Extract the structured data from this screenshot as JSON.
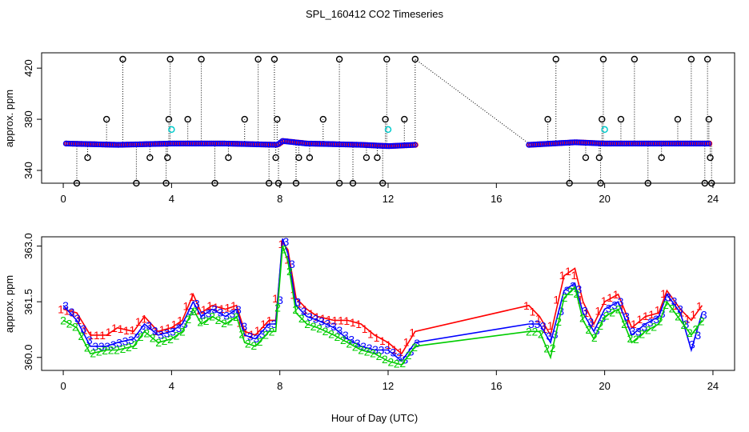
{
  "colors": {
    "red": "#ff0000",
    "blue": "#0000ff",
    "green": "#00cc00",
    "cyan": "#00cccc",
    "black": "#000000"
  },
  "chart_data": [
    {
      "type": "scatter",
      "title": "SPL_160412  CO2 Timeseries",
      "xlabel": "",
      "ylabel": "approx. ppm",
      "xlim": [
        -0.8,
        24.8
      ],
      "ylim": [
        330,
        432
      ],
      "xticks": [
        0,
        4,
        8,
        12,
        16,
        20,
        24
      ],
      "yticks": [
        340,
        380,
        420
      ],
      "segments": [
        [
          0.1,
          13.0
        ],
        [
          17.2,
          23.9
        ]
      ],
      "baseline": [
        {
          "x": 0.1,
          "y": 361
        },
        {
          "x": 2.0,
          "y": 360
        },
        {
          "x": 4.0,
          "y": 361
        },
        {
          "x": 6.0,
          "y": 361
        },
        {
          "x": 7.9,
          "y": 360
        },
        {
          "x": 8.1,
          "y": 363
        },
        {
          "x": 9.0,
          "y": 361
        },
        {
          "x": 11.0,
          "y": 360
        },
        {
          "x": 12.0,
          "y": 359
        },
        {
          "x": 13.0,
          "y": 360
        },
        {
          "x": 17.2,
          "y": 360
        },
        {
          "x": 18.9,
          "y": 362
        },
        {
          "x": 20.0,
          "y": 361
        },
        {
          "x": 22.0,
          "y": 361
        },
        {
          "x": 23.9,
          "y": 361
        }
      ],
      "gap_line": {
        "x": [
          13.0,
          17.2
        ],
        "y": [
          427,
          361
        ]
      },
      "cyan_points": [
        {
          "x": 4.0,
          "y": 372
        },
        {
          "x": 12.0,
          "y": 372
        },
        {
          "x": 20.0,
          "y": 372
        }
      ],
      "outliers": [
        {
          "x": 0.5,
          "y": 330
        },
        {
          "x": 0.9,
          "y": 350
        },
        {
          "x": 1.6,
          "y": 380
        },
        {
          "x": 2.2,
          "y": 427
        },
        {
          "x": 2.7,
          "y": 330
        },
        {
          "x": 3.2,
          "y": 350
        },
        {
          "x": 3.8,
          "y": 330
        },
        {
          "x": 3.85,
          "y": 350
        },
        {
          "x": 3.9,
          "y": 380
        },
        {
          "x": 3.95,
          "y": 427
        },
        {
          "x": 4.6,
          "y": 380
        },
        {
          "x": 5.1,
          "y": 427
        },
        {
          "x": 5.6,
          "y": 330
        },
        {
          "x": 6.1,
          "y": 350
        },
        {
          "x": 6.7,
          "y": 380
        },
        {
          "x": 7.2,
          "y": 427
        },
        {
          "x": 7.6,
          "y": 330
        },
        {
          "x": 7.8,
          "y": 427
        },
        {
          "x": 7.85,
          "y": 350
        },
        {
          "x": 7.9,
          "y": 380
        },
        {
          "x": 7.95,
          "y": 330
        },
        {
          "x": 8.6,
          "y": 330
        },
        {
          "x": 8.7,
          "y": 350
        },
        {
          "x": 9.1,
          "y": 350
        },
        {
          "x": 9.6,
          "y": 380
        },
        {
          "x": 10.2,
          "y": 427
        },
        {
          "x": 10.2,
          "y": 330
        },
        {
          "x": 10.7,
          "y": 330
        },
        {
          "x": 11.2,
          "y": 350
        },
        {
          "x": 11.6,
          "y": 350
        },
        {
          "x": 11.8,
          "y": 330
        },
        {
          "x": 11.9,
          "y": 380
        },
        {
          "x": 11.95,
          "y": 427
        },
        {
          "x": 12.6,
          "y": 380
        },
        {
          "x": 13.0,
          "y": 427
        },
        {
          "x": 17.9,
          "y": 380
        },
        {
          "x": 18.2,
          "y": 427
        },
        {
          "x": 18.7,
          "y": 330
        },
        {
          "x": 19.3,
          "y": 350
        },
        {
          "x": 19.8,
          "y": 350
        },
        {
          "x": 19.85,
          "y": 330
        },
        {
          "x": 19.9,
          "y": 380
        },
        {
          "x": 19.95,
          "y": 427
        },
        {
          "x": 20.6,
          "y": 380
        },
        {
          "x": 21.1,
          "y": 427
        },
        {
          "x": 21.6,
          "y": 330
        },
        {
          "x": 22.1,
          "y": 350
        },
        {
          "x": 22.7,
          "y": 380
        },
        {
          "x": 23.2,
          "y": 427
        },
        {
          "x": 23.7,
          "y": 330
        },
        {
          "x": 23.8,
          "y": 427
        },
        {
          "x": 23.85,
          "y": 380
        },
        {
          "x": 23.9,
          "y": 350
        },
        {
          "x": 23.95,
          "y": 330
        }
      ]
    },
    {
      "type": "line",
      "title": "",
      "xlabel": "Hour of Day (UTC)",
      "ylabel": "approx. ppm",
      "xlim": [
        -0.8,
        24.8
      ],
      "ylim": [
        359.65,
        363.25
      ],
      "xticks": [
        0,
        4,
        8,
        12,
        16,
        20,
        24
      ],
      "yticks": [
        360.0,
        361.5,
        363.0
      ],
      "ytick_labels": [
        "360.0",
        "361.5",
        "363.0"
      ],
      "series": [
        {
          "name": "1",
          "color": "#ff0000",
          "points": [
            {
              "x": 0.0,
              "y": 361.3
            },
            {
              "x": 0.5,
              "y": 361.2
            },
            {
              "x": 1.0,
              "y": 360.6
            },
            {
              "x": 1.6,
              "y": 360.6
            },
            {
              "x": 2.0,
              "y": 360.8
            },
            {
              "x": 2.6,
              "y": 360.7
            },
            {
              "x": 3.0,
              "y": 361.1
            },
            {
              "x": 3.5,
              "y": 360.7
            },
            {
              "x": 4.0,
              "y": 360.8
            },
            {
              "x": 4.4,
              "y": 361.0
            },
            {
              "x": 4.8,
              "y": 361.7
            },
            {
              "x": 5.1,
              "y": 361.2
            },
            {
              "x": 5.5,
              "y": 361.4
            },
            {
              "x": 6.0,
              "y": 361.3
            },
            {
              "x": 6.4,
              "y": 361.4
            },
            {
              "x": 6.7,
              "y": 360.7
            },
            {
              "x": 7.1,
              "y": 360.6
            },
            {
              "x": 7.6,
              "y": 361.0
            },
            {
              "x": 7.85,
              "y": 361.0
            },
            {
              "x": 8.1,
              "y": 363.1
            },
            {
              "x": 8.3,
              "y": 362.9
            },
            {
              "x": 8.6,
              "y": 361.6
            },
            {
              "x": 9.0,
              "y": 361.3
            },
            {
              "x": 9.4,
              "y": 361.1
            },
            {
              "x": 10.0,
              "y": 361.0
            },
            {
              "x": 10.5,
              "y": 361.0
            },
            {
              "x": 11.0,
              "y": 360.9
            },
            {
              "x": 11.5,
              "y": 360.6
            },
            {
              "x": 12.0,
              "y": 360.4
            },
            {
              "x": 12.5,
              "y": 360.1
            },
            {
              "x": 13.0,
              "y": 360.7
            },
            {
              "x": 17.2,
              "y": 361.4
            },
            {
              "x": 17.6,
              "y": 361.1
            },
            {
              "x": 18.0,
              "y": 360.6
            },
            {
              "x": 18.5,
              "y": 362.2
            },
            {
              "x": 18.9,
              "y": 362.4
            },
            {
              "x": 19.2,
              "y": 361.5
            },
            {
              "x": 19.6,
              "y": 360.9
            },
            {
              "x": 20.0,
              "y": 361.5
            },
            {
              "x": 20.5,
              "y": 361.7
            },
            {
              "x": 21.0,
              "y": 360.8
            },
            {
              "x": 21.5,
              "y": 361.1
            },
            {
              "x": 22.0,
              "y": 361.2
            },
            {
              "x": 22.3,
              "y": 361.8
            },
            {
              "x": 22.8,
              "y": 361.3
            },
            {
              "x": 23.2,
              "y": 361.0
            },
            {
              "x": 23.6,
              "y": 361.4
            }
          ]
        },
        {
          "name": "3",
          "color": "#0000ff",
          "points": [
            {
              "x": 0.0,
              "y": 361.4
            },
            {
              "x": 0.5,
              "y": 361.0
            },
            {
              "x": 1.0,
              "y": 360.3
            },
            {
              "x": 1.6,
              "y": 360.3
            },
            {
              "x": 2.0,
              "y": 360.4
            },
            {
              "x": 2.6,
              "y": 360.5
            },
            {
              "x": 3.0,
              "y": 360.9
            },
            {
              "x": 3.5,
              "y": 360.6
            },
            {
              "x": 4.0,
              "y": 360.7
            },
            {
              "x": 4.4,
              "y": 360.9
            },
            {
              "x": 4.8,
              "y": 361.5
            },
            {
              "x": 5.1,
              "y": 361.1
            },
            {
              "x": 5.5,
              "y": 361.3
            },
            {
              "x": 6.0,
              "y": 361.1
            },
            {
              "x": 6.4,
              "y": 361.3
            },
            {
              "x": 6.7,
              "y": 360.6
            },
            {
              "x": 7.1,
              "y": 360.5
            },
            {
              "x": 7.6,
              "y": 360.9
            },
            {
              "x": 7.85,
              "y": 360.9
            },
            {
              "x": 8.1,
              "y": 363.2
            },
            {
              "x": 8.3,
              "y": 362.8
            },
            {
              "x": 8.6,
              "y": 361.4
            },
            {
              "x": 9.0,
              "y": 361.1
            },
            {
              "x": 9.4,
              "y": 361.0
            },
            {
              "x": 10.0,
              "y": 360.8
            },
            {
              "x": 10.5,
              "y": 360.5
            },
            {
              "x": 11.0,
              "y": 360.3
            },
            {
              "x": 11.5,
              "y": 360.2
            },
            {
              "x": 12.0,
              "y": 360.2
            },
            {
              "x": 12.5,
              "y": 359.9
            },
            {
              "x": 13.0,
              "y": 360.4
            },
            {
              "x": 17.2,
              "y": 360.9
            },
            {
              "x": 17.6,
              "y": 360.9
            },
            {
              "x": 18.0,
              "y": 360.4
            },
            {
              "x": 18.5,
              "y": 361.8
            },
            {
              "x": 18.9,
              "y": 362.0
            },
            {
              "x": 19.2,
              "y": 361.2
            },
            {
              "x": 19.6,
              "y": 360.7
            },
            {
              "x": 20.0,
              "y": 361.3
            },
            {
              "x": 20.5,
              "y": 361.5
            },
            {
              "x": 21.0,
              "y": 360.6
            },
            {
              "x": 21.5,
              "y": 360.9
            },
            {
              "x": 22.0,
              "y": 361.1
            },
            {
              "x": 22.3,
              "y": 361.7
            },
            {
              "x": 22.8,
              "y": 361.2
            },
            {
              "x": 23.2,
              "y": 360.2
            },
            {
              "x": 23.6,
              "y": 361.2
            }
          ]
        },
        {
          "name": "2",
          "color": "#00cc00",
          "points": [
            {
              "x": 0.0,
              "y": 361.0
            },
            {
              "x": 0.5,
              "y": 360.8
            },
            {
              "x": 1.0,
              "y": 360.1
            },
            {
              "x": 1.6,
              "y": 360.2
            },
            {
              "x": 2.0,
              "y": 360.2
            },
            {
              "x": 2.6,
              "y": 360.3
            },
            {
              "x": 3.0,
              "y": 360.7
            },
            {
              "x": 3.5,
              "y": 360.4
            },
            {
              "x": 4.0,
              "y": 360.5
            },
            {
              "x": 4.4,
              "y": 360.7
            },
            {
              "x": 4.8,
              "y": 361.3
            },
            {
              "x": 5.1,
              "y": 360.9
            },
            {
              "x": 5.5,
              "y": 361.1
            },
            {
              "x": 6.0,
              "y": 360.9
            },
            {
              "x": 6.4,
              "y": 361.1
            },
            {
              "x": 6.7,
              "y": 360.4
            },
            {
              "x": 7.1,
              "y": 360.3
            },
            {
              "x": 7.6,
              "y": 360.7
            },
            {
              "x": 7.85,
              "y": 360.7
            },
            {
              "x": 8.1,
              "y": 363.0
            },
            {
              "x": 8.3,
              "y": 362.6
            },
            {
              "x": 8.6,
              "y": 361.2
            },
            {
              "x": 9.0,
              "y": 360.9
            },
            {
              "x": 9.4,
              "y": 360.8
            },
            {
              "x": 10.0,
              "y": 360.6
            },
            {
              "x": 10.5,
              "y": 360.4
            },
            {
              "x": 11.0,
              "y": 360.2
            },
            {
              "x": 11.5,
              "y": 360.1
            },
            {
              "x": 12.0,
              "y": 359.9
            },
            {
              "x": 12.5,
              "y": 359.8
            },
            {
              "x": 13.0,
              "y": 360.3
            },
            {
              "x": 17.2,
              "y": 360.7
            },
            {
              "x": 17.6,
              "y": 360.7
            },
            {
              "x": 18.0,
              "y": 360.0
            },
            {
              "x": 18.5,
              "y": 361.6
            },
            {
              "x": 18.9,
              "y": 361.9
            },
            {
              "x": 19.2,
              "y": 361.0
            },
            {
              "x": 19.6,
              "y": 360.5
            },
            {
              "x": 20.0,
              "y": 361.1
            },
            {
              "x": 20.5,
              "y": 361.3
            },
            {
              "x": 21.0,
              "y": 360.4
            },
            {
              "x": 21.5,
              "y": 360.7
            },
            {
              "x": 22.0,
              "y": 360.9
            },
            {
              "x": 22.3,
              "y": 361.5
            },
            {
              "x": 22.8,
              "y": 361.0
            },
            {
              "x": 23.2,
              "y": 360.6
            },
            {
              "x": 23.6,
              "y": 361.0
            }
          ]
        }
      ]
    }
  ]
}
